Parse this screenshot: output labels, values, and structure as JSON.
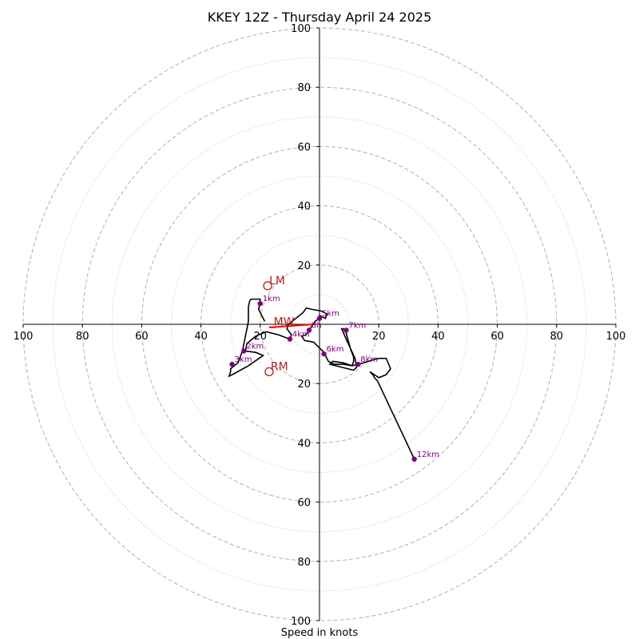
{
  "chart_data": {
    "type": "scatter",
    "title": "KKEY 12Z - Thursday April 24 2025",
    "xlabel": "Speed in knots",
    "ylabel": "",
    "xlim": [
      -100,
      100
    ],
    "ylim": [
      -100,
      100
    ],
    "grid": true,
    "ring_major_values": [
      20,
      40,
      60,
      80,
      100
    ],
    "ring_minor_values": [
      10,
      30,
      50,
      70,
      90
    ],
    "x_tick_labels": [
      {
        "value": -100,
        "label": "100"
      },
      {
        "value": -80,
        "label": "80"
      },
      {
        "value": -60,
        "label": "60"
      },
      {
        "value": -40,
        "label": "40"
      },
      {
        "value": -20,
        "label": "20"
      },
      {
        "value": 20,
        "label": "20"
      },
      {
        "value": 40,
        "label": "40"
      },
      {
        "value": 60,
        "label": "60"
      },
      {
        "value": 80,
        "label": "80"
      },
      {
        "value": 100,
        "label": "100"
      }
    ],
    "y_tick_labels": [
      {
        "value": 100,
        "label": "100"
      },
      {
        "value": 80,
        "label": "80"
      },
      {
        "value": 60,
        "label": "60"
      },
      {
        "value": 40,
        "label": "40"
      },
      {
        "value": 20,
        "label": "20"
      },
      {
        "value": -20,
        "label": "20"
      },
      {
        "value": -40,
        "label": "40"
      },
      {
        "value": -60,
        "label": "60"
      },
      {
        "value": -80,
        "label": "80"
      },
      {
        "value": -100,
        "label": "100"
      }
    ],
    "hodograph": {
      "color": "#000000",
      "points": [
        [
          -18.5,
          1
        ],
        [
          -20.5,
          5
        ],
        [
          -20,
          8.5
        ],
        [
          -23,
          8.5
        ],
        [
          -23.5,
          8
        ],
        [
          -24,
          6
        ],
        [
          -24,
          1
        ],
        [
          -25,
          -4
        ],
        [
          -26,
          -9
        ],
        [
          -27.5,
          -13
        ],
        [
          -30,
          -15
        ],
        [
          -30,
          -16
        ],
        [
          -30.5,
          -17.5
        ],
        [
          -29.5,
          -17
        ],
        [
          -24,
          -14
        ],
        [
          -19,
          -10.5
        ],
        [
          -21.5,
          -9.5
        ],
        [
          -25,
          -9
        ],
        [
          -24.5,
          -6.5
        ],
        [
          -21.5,
          -4
        ],
        [
          -18,
          -2.5
        ],
        [
          -14,
          -3.5
        ],
        [
          -10,
          -5
        ],
        [
          -9.5,
          -3.5
        ],
        [
          -11,
          -1.5
        ],
        [
          -10.5,
          0
        ],
        [
          -8,
          2
        ],
        [
          -5.5,
          4
        ],
        [
          -4.5,
          5.5
        ],
        [
          -2.5,
          5
        ],
        [
          0.5,
          4.5
        ],
        [
          2.5,
          3.5
        ],
        [
          2,
          2
        ],
        [
          0,
          3
        ],
        [
          0,
          2
        ],
        [
          -1.5,
          1
        ],
        [
          -3.5,
          -2
        ],
        [
          -4.5,
          -3.5
        ],
        [
          -6,
          -4
        ],
        [
          -5,
          -5.5
        ],
        [
          -2,
          -6
        ],
        [
          1.5,
          -9.5
        ],
        [
          3,
          -12.5
        ],
        [
          5,
          -13.5
        ],
        [
          8,
          -13.5
        ],
        [
          11,
          -14
        ],
        [
          11.5,
          -12.5
        ],
        [
          11.5,
          -11
        ],
        [
          10.5,
          -8.5
        ],
        [
          9,
          -3
        ],
        [
          8,
          -1.5
        ],
        [
          7.5,
          -1.5
        ],
        [
          9,
          -5
        ],
        [
          12,
          -11.5
        ],
        [
          12.5,
          -14.5
        ],
        [
          11.5,
          -15.5
        ],
        [
          5.5,
          -14
        ],
        [
          3.5,
          -13.5
        ],
        [
          4.5,
          -12.5
        ],
        [
          8,
          -13
        ],
        [
          11,
          -14
        ],
        [
          13,
          -13.5
        ],
        [
          15,
          -13
        ],
        [
          18,
          -12
        ],
        [
          20,
          -11.5
        ],
        [
          22.5,
          -11.5
        ],
        [
          24,
          -15
        ],
        [
          22.5,
          -17
        ],
        [
          20,
          -18
        ],
        [
          17,
          -16
        ],
        [
          18,
          -17
        ],
        [
          18.5,
          -18
        ],
        [
          19.5,
          -19
        ],
        [
          20,
          -20
        ],
        [
          32,
          -45.5
        ]
      ]
    },
    "height_markers": {
      "color": "#800080",
      "points": [
        {
          "label": "1km",
          "x": -20,
          "y": 7
        },
        {
          "label": "2km",
          "x": -25.5,
          "y": -9
        },
        {
          "label": "3km",
          "x": -29.5,
          "y": -13.5
        },
        {
          "label": "4km",
          "x": -10,
          "y": -5
        },
        {
          "label": "5km",
          "x": 0,
          "y": 2
        },
        {
          "label": "6km",
          "x": 1.5,
          "y": -10
        },
        {
          "label": "7km",
          "x": 9,
          "y": -2
        },
        {
          "label": "8km",
          "x": 13,
          "y": -13.5
        },
        {
          "label": "12km",
          "x": 32,
          "y": -45.5
        },
        {
          "label": "8h",
          "x": -3.5,
          "y": -2
        }
      ]
    },
    "storm_motion": {
      "color": "#b22222",
      "points": [
        {
          "label": "LM",
          "x": -17.5,
          "y": 13
        },
        {
          "label": "MW",
          "x": -16,
          "y": -1
        },
        {
          "label": "RM",
          "x": -17,
          "y": -16
        }
      ]
    },
    "shear_vector": {
      "color": "#ff0000",
      "from": [
        -16,
        -1
      ],
      "to": [
        -2,
        0
      ]
    }
  }
}
